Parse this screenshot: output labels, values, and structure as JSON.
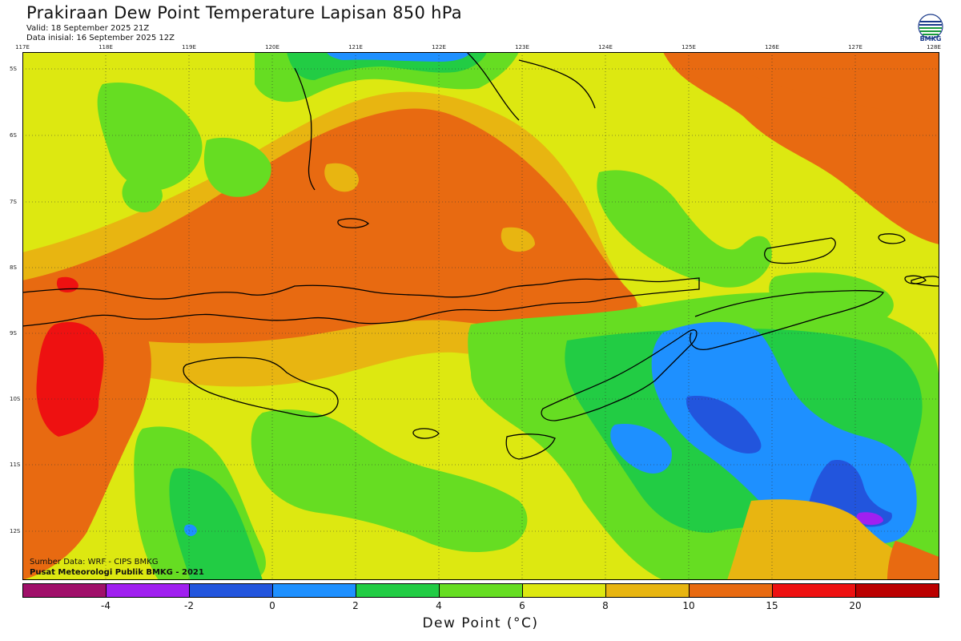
{
  "header": {
    "title": "Prakiraan Dew Point Temperature Lapisan 850 hPa",
    "valid": "Valid: 18 September 2025 21Z",
    "data_init": "Data inisial: 16 September 2025 12Z"
  },
  "logo": {
    "text": "BMKG",
    "icon": "bmkg-globe-icon"
  },
  "axes": {
    "lon_labels": [
      "117E",
      "118E",
      "119E",
      "120E",
      "121E",
      "122E",
      "123E",
      "124E",
      "125E",
      "126E",
      "127E",
      "128E"
    ],
    "lat_labels": [
      "5S",
      "6S",
      "7S",
      "8S",
      "9S",
      "10S",
      "11S",
      "12S"
    ]
  },
  "credits": {
    "line1": "Sumber Data: WRF - CIPS BMKG",
    "line2": "Pusat Meteorologi Publik BMKG - 2021"
  },
  "colorbar": {
    "title": "Dew Point (°C)",
    "ticks": [
      "-4",
      "-2",
      "0",
      "2",
      "4",
      "6",
      "8",
      "10",
      "15",
      "20"
    ],
    "colors": [
      "#a0106a",
      "#a020f0",
      "#2255dd",
      "#1e90ff",
      "#22cc44",
      "#66dd22",
      "#dde811",
      "#e8b511",
      "#e86a11",
      "#ee1111",
      "#bb0000"
    ]
  },
  "map": {
    "region": "Nusa Tenggara, Indonesia",
    "shading": "dew-point-contour-fill",
    "grid": true
  }
}
